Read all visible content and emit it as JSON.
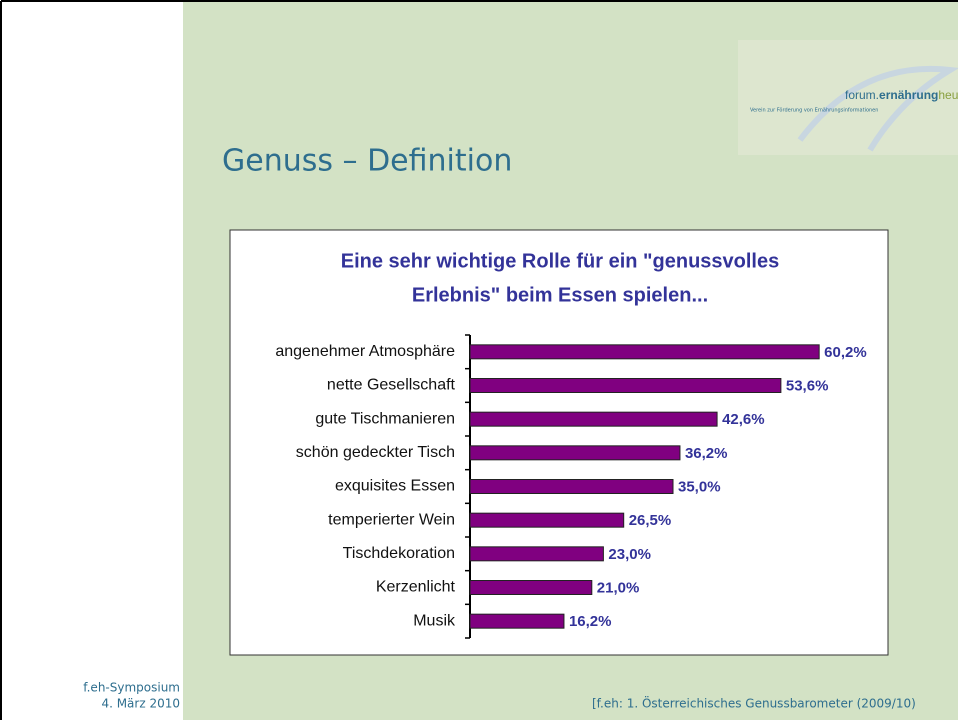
{
  "slide": {
    "title": "Genuss – Definition",
    "logo": {
      "name_part1": "forum.",
      "name_part2": "ernährung",
      "name_part3": "heute",
      "tagline": "Verein zur Förderung von Ernährungsinformationen"
    },
    "footer_left": [
      "f.eh-Symposium",
      "4. März 2010"
    ],
    "footer_right": "[f.eh: 1. Österreichisches Genussbarometer (2009/10)"
  },
  "chart_data": {
    "type": "bar",
    "orientation": "horizontal",
    "title": [
      "Eine sehr wichtige Rolle für ein \"genussvolles",
      "Erlebnis\" beim Essen spielen..."
    ],
    "categories": [
      "angenehmer Atmosphäre",
      "nette Gesellschaft",
      "gute Tischmanieren",
      "schön gedeckter Tisch",
      "exquisites Essen",
      "temperierter Wein",
      "Tischdekoration",
      "Kerzenlicht",
      "Musik"
    ],
    "values": [
      60.2,
      53.6,
      42.6,
      36.2,
      35.0,
      26.5,
      23.0,
      21.0,
      16.2
    ],
    "value_labels": [
      "60,2%",
      "53,6%",
      "42,6%",
      "36,2%",
      "35,0%",
      "26,5%",
      "23,0%",
      "21,0%",
      "16,2%"
    ],
    "color": "#800080"
  }
}
